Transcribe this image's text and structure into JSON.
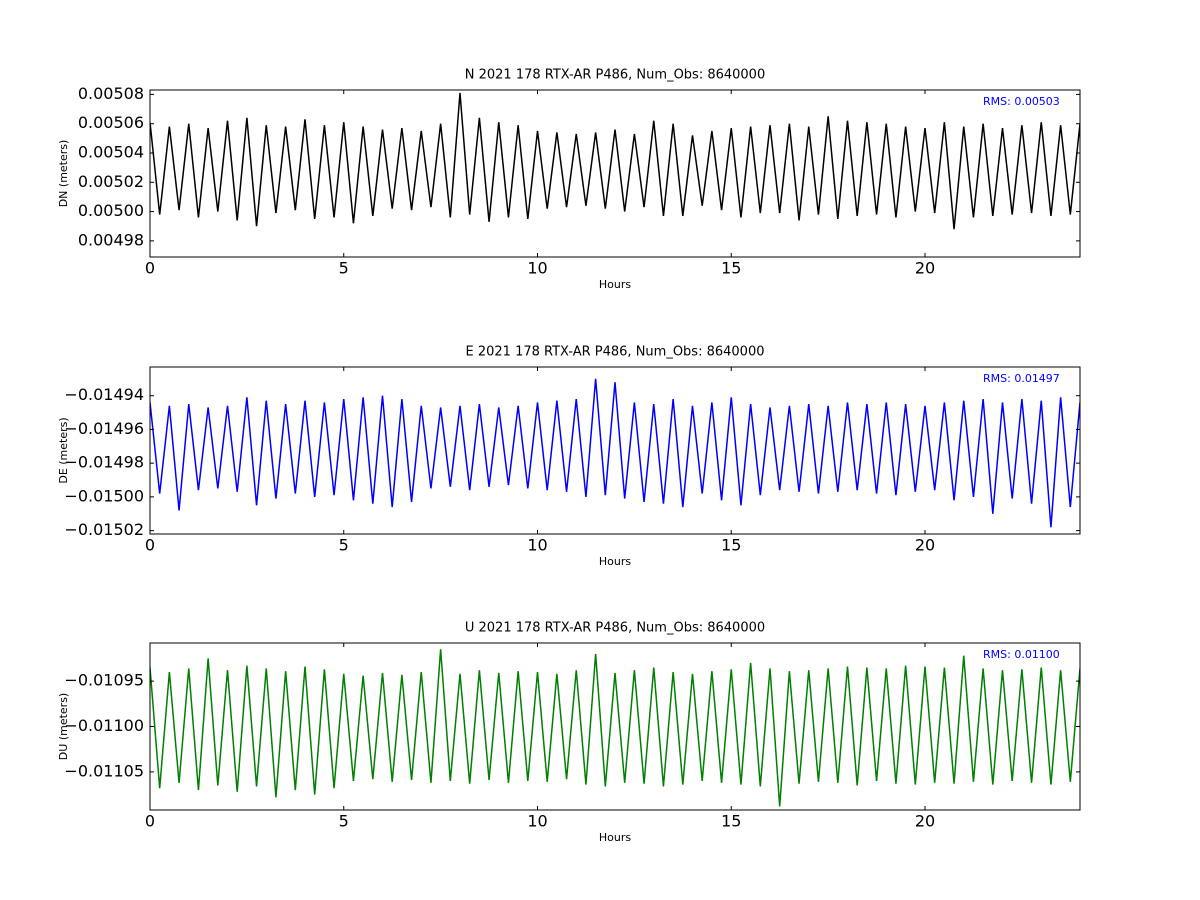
{
  "chart_data": [
    {
      "type": "line",
      "title": "N 2021 178 RTX-AR  P486, Num_Obs: 8640000",
      "xlabel": "Hours",
      "ylabel": "DN (meters)",
      "annotation": "RMS:  0.00503",
      "annotation_color": "#0000ff",
      "color": "#000000",
      "xlim": [
        0,
        24
      ],
      "xticks": [
        0,
        5,
        10,
        15,
        20
      ],
      "ylim": [
        0.004969,
        0.005083
      ],
      "yticks": [
        0.00498,
        {
          "value": 0.005,
          "label": "0.00500"
        },
        0.00502,
        0.00504,
        0.00506,
        0.00508
      ],
      "x": [
        0,
        0.25,
        0.5,
        0.75,
        1,
        1.25,
        1.5,
        1.75,
        2,
        2.25,
        2.5,
        2.75,
        3,
        3.25,
        3.5,
        3.75,
        4,
        4.25,
        4.5,
        4.75,
        5,
        5.25,
        5.5,
        5.75,
        6,
        6.25,
        6.5,
        6.75,
        7,
        7.25,
        7.5,
        7.75,
        8,
        8.25,
        8.5,
        8.75,
        9,
        9.25,
        9.5,
        9.75,
        10,
        10.25,
        10.5,
        10.75,
        11,
        11.25,
        11.5,
        11.75,
        12,
        12.25,
        12.5,
        12.75,
        13,
        13.25,
        13.5,
        13.75,
        14,
        14.25,
        14.5,
        14.75,
        15,
        15.25,
        15.5,
        15.75,
        16,
        16.25,
        16.5,
        16.75,
        17,
        17.25,
        17.5,
        17.75,
        18,
        18.25,
        18.5,
        18.75,
        19,
        19.25,
        19.5,
        19.75,
        20,
        20.25,
        20.5,
        20.75,
        21,
        21.25,
        21.5,
        21.75,
        22,
        22.25,
        22.5,
        22.75,
        23,
        23.25,
        23.5,
        23.75,
        24
      ],
      "values": [
        0.005061,
        0.004998,
        0.005058,
        0.005001,
        0.00506,
        0.004996,
        0.005057,
        0.005,
        0.005062,
        0.004994,
        0.005064,
        0.00499,
        0.005059,
        0.004999,
        0.005058,
        0.005001,
        0.005063,
        0.004995,
        0.005059,
        0.004996,
        0.005061,
        0.004992,
        0.005058,
        0.004997,
        0.005056,
        0.005002,
        0.005057,
        0.005001,
        0.005055,
        0.005003,
        0.00506,
        0.004996,
        0.005081,
        0.004998,
        0.005064,
        0.004993,
        0.005061,
        0.004996,
        0.005059,
        0.004995,
        0.005055,
        0.005002,
        0.005054,
        0.005003,
        0.005053,
        0.005004,
        0.005054,
        0.005002,
        0.005056,
        0.005,
        0.005053,
        0.005003,
        0.005062,
        0.004997,
        0.00506,
        0.004997,
        0.005052,
        0.005004,
        0.005055,
        0.005001,
        0.005057,
        0.004996,
        0.005058,
        0.004999,
        0.005059,
        0.004999,
        0.00506,
        0.004994,
        0.005058,
        0.004998,
        0.005065,
        0.004995,
        0.005062,
        0.004997,
        0.005061,
        0.004998,
        0.00506,
        0.004996,
        0.005058,
        0.005,
        0.005057,
        0.004999,
        0.005061,
        0.004988,
        0.005058,
        0.004996,
        0.00506,
        0.004997,
        0.005057,
        0.004998,
        0.005059,
        0.004999,
        0.005061,
        0.004997,
        0.005059,
        0.004998,
        0.00506
      ]
    },
    {
      "type": "line",
      "title": "E 2021 178 RTX-AR  P486, Num_Obs: 8640000",
      "xlabel": "Hours",
      "ylabel": "DE (meters)",
      "annotation": "RMS:  0.01497",
      "annotation_color": "#0000ff",
      "color": "#0000ff",
      "xlim": [
        0,
        24
      ],
      "xticks": [
        0,
        5,
        10,
        15,
        20
      ],
      "ylim": [
        -0.015022,
        -0.014923
      ],
      "yticks": [
        {
          "value": -0.01502,
          "label": "−0.01502"
        },
        {
          "value": -0.015,
          "label": "−0.01500"
        },
        {
          "value": -0.01498,
          "label": "−0.01498"
        },
        {
          "value": -0.01496,
          "label": "−0.01496"
        },
        {
          "value": -0.01494,
          "label": "−0.01494"
        }
      ],
      "x": [
        0,
        0.25,
        0.5,
        0.75,
        1,
        1.25,
        1.5,
        1.75,
        2,
        2.25,
        2.5,
        2.75,
        3,
        3.25,
        3.5,
        3.75,
        4,
        4.25,
        4.5,
        4.75,
        5,
        5.25,
        5.5,
        5.75,
        6,
        6.25,
        6.5,
        6.75,
        7,
        7.25,
        7.5,
        7.75,
        8,
        8.25,
        8.5,
        8.75,
        9,
        9.25,
        9.5,
        9.75,
        10,
        10.25,
        10.5,
        10.75,
        11,
        11.25,
        11.5,
        11.75,
        12,
        12.25,
        12.5,
        12.75,
        13,
        13.25,
        13.5,
        13.75,
        14,
        14.25,
        14.5,
        14.75,
        15,
        15.25,
        15.5,
        15.75,
        16,
        16.25,
        16.5,
        16.75,
        17,
        17.25,
        17.5,
        17.75,
        18,
        18.25,
        18.5,
        18.75,
        19,
        19.25,
        19.5,
        19.75,
        20,
        20.25,
        20.5,
        20.75,
        21,
        21.25,
        21.5,
        21.75,
        22,
        22.25,
        22.5,
        22.75,
        23,
        23.25,
        23.5,
        23.75,
        24
      ],
      "values": [
        -0.014944,
        -0.014998,
        -0.014946,
        -0.015008,
        -0.014945,
        -0.014996,
        -0.014947,
        -0.014995,
        -0.014946,
        -0.014997,
        -0.014941,
        -0.015005,
        -0.014943,
        -0.015001,
        -0.014945,
        -0.014998,
        -0.014943,
        -0.015,
        -0.014944,
        -0.014999,
        -0.014942,
        -0.015002,
        -0.014941,
        -0.015004,
        -0.01494,
        -0.015006,
        -0.014942,
        -0.015003,
        -0.014946,
        -0.014995,
        -0.014947,
        -0.014994,
        -0.014946,
        -0.014996,
        -0.014945,
        -0.014994,
        -0.014947,
        -0.014993,
        -0.014946,
        -0.014995,
        -0.014944,
        -0.014996,
        -0.014943,
        -0.014997,
        -0.014942,
        -0.015,
        -0.01493,
        -0.014999,
        -0.014932,
        -0.015001,
        -0.014944,
        -0.015003,
        -0.014945,
        -0.015004,
        -0.014942,
        -0.015006,
        -0.014946,
        -0.014998,
        -0.014944,
        -0.015002,
        -0.014941,
        -0.015005,
        -0.014945,
        -0.014999,
        -0.014947,
        -0.014996,
        -0.014946,
        -0.014997,
        -0.014945,
        -0.014998,
        -0.014946,
        -0.014997,
        -0.014944,
        -0.014996,
        -0.014945,
        -0.014998,
        -0.014944,
        -0.014999,
        -0.014945,
        -0.014997,
        -0.014946,
        -0.014996,
        -0.014944,
        -0.015002,
        -0.014943,
        -0.015,
        -0.014942,
        -0.01501,
        -0.014944,
        -0.015001,
        -0.014942,
        -0.015004,
        -0.014943,
        -0.015018,
        -0.014941,
        -0.015006,
        -0.014944
      ]
    },
    {
      "type": "line",
      "title": "U 2021 178 RTX-AR  P486, Num_Obs: 8640000",
      "xlabel": "Hours",
      "ylabel": "DU (meters)",
      "annotation": "RMS:  0.01100",
      "annotation_color": "#0000ff",
      "color": "#008000",
      "xlim": [
        0,
        24
      ],
      "xticks": [
        0,
        5,
        10,
        15,
        20
      ],
      "ylim": [
        -0.011092,
        -0.010908
      ],
      "yticks": [
        {
          "value": -0.01105,
          "label": "−0.01105"
        },
        {
          "value": -0.011,
          "label": "−0.01100"
        },
        {
          "value": -0.01095,
          "label": "−0.01095"
        }
      ],
      "x": [
        0,
        0.25,
        0.5,
        0.75,
        1,
        1.25,
        1.5,
        1.75,
        2,
        2.25,
        2.5,
        2.75,
        3,
        3.25,
        3.5,
        3.75,
        4,
        4.25,
        4.5,
        4.75,
        5,
        5.25,
        5.5,
        5.75,
        6,
        6.25,
        6.5,
        6.75,
        7,
        7.25,
        7.5,
        7.75,
        8,
        8.25,
        8.5,
        8.75,
        9,
        9.25,
        9.5,
        9.75,
        10,
        10.25,
        10.5,
        10.75,
        11,
        11.25,
        11.5,
        11.75,
        12,
        12.25,
        12.5,
        12.75,
        13,
        13.25,
        13.5,
        13.75,
        14,
        14.25,
        14.5,
        14.75,
        15,
        15.25,
        15.5,
        15.75,
        16,
        16.25,
        16.5,
        16.75,
        17,
        17.25,
        17.5,
        17.75,
        18,
        18.25,
        18.5,
        18.75,
        19,
        19.25,
        19.5,
        19.75,
        20,
        20.25,
        20.5,
        20.75,
        21,
        21.25,
        21.5,
        21.75,
        22,
        22.25,
        22.5,
        22.75,
        23,
        23.25,
        23.5,
        23.75,
        24
      ],
      "values": [
        -0.010935,
        -0.011068,
        -0.01094,
        -0.011062,
        -0.010936,
        -0.01107,
        -0.010925,
        -0.011065,
        -0.010938,
        -0.011072,
        -0.010933,
        -0.011066,
        -0.010936,
        -0.011078,
        -0.010939,
        -0.01107,
        -0.010934,
        -0.011075,
        -0.010937,
        -0.011068,
        -0.010942,
        -0.01106,
        -0.010944,
        -0.011058,
        -0.010941,
        -0.011061,
        -0.010943,
        -0.011059,
        -0.01094,
        -0.011062,
        -0.010915,
        -0.01106,
        -0.010942,
        -0.011063,
        -0.010938,
        -0.011059,
        -0.010941,
        -0.011062,
        -0.010939,
        -0.01106,
        -0.01094,
        -0.011061,
        -0.010942,
        -0.011058,
        -0.010938,
        -0.011064,
        -0.01092,
        -0.011066,
        -0.010941,
        -0.011062,
        -0.010938,
        -0.011063,
        -0.010935,
        -0.011066,
        -0.01094,
        -0.011064,
        -0.010942,
        -0.01106,
        -0.010939,
        -0.011062,
        -0.010937,
        -0.011064,
        -0.01093,
        -0.011066,
        -0.010936,
        -0.011088,
        -0.010939,
        -0.011063,
        -0.010938,
        -0.011061,
        -0.010936,
        -0.011062,
        -0.010934,
        -0.011065,
        -0.010935,
        -0.01106,
        -0.010936,
        -0.011063,
        -0.010933,
        -0.011064,
        -0.010934,
        -0.011062,
        -0.010935,
        -0.011063,
        -0.010922,
        -0.011061,
        -0.010936,
        -0.011064,
        -0.010938,
        -0.01106,
        -0.010937,
        -0.011062,
        -0.010935,
        -0.011064,
        -0.010938,
        -0.011061,
        -0.010936
      ]
    }
  ]
}
